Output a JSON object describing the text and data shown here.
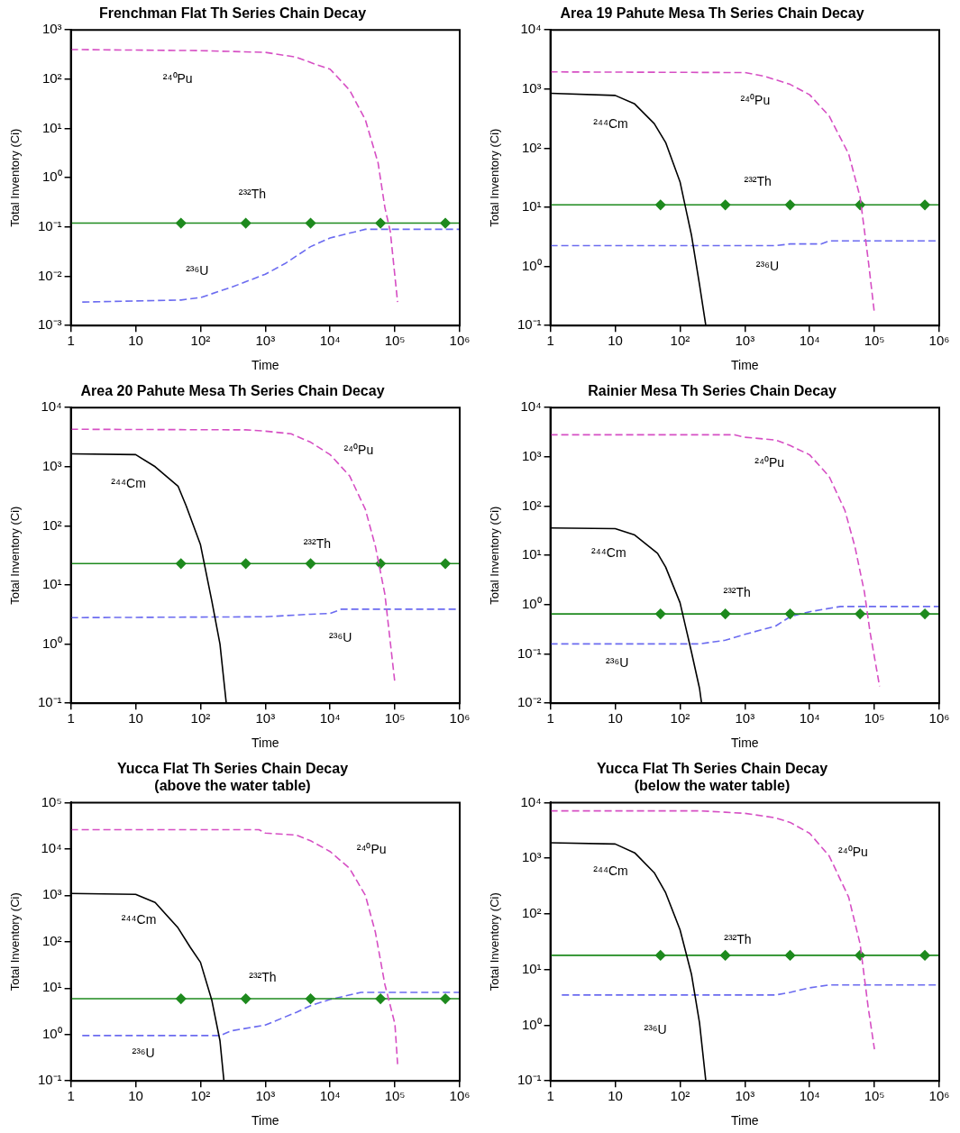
{
  "chart_data": [
    {
      "type": "line",
      "title": "Frenchman Flat Th Series Chain Decay",
      "xlabel": "Time",
      "ylabel": "Total Inventory (Ci)",
      "log": "xy",
      "grid": false,
      "legend": false,
      "xlim": [
        1,
        1000000
      ],
      "xticks": [
        {
          "value": 1,
          "label": "1"
        },
        {
          "value": 10,
          "label": "10"
        },
        {
          "value": 100,
          "label": "10²"
        },
        {
          "value": 1000,
          "label": "10³"
        },
        {
          "value": 10000,
          "label": "10⁴"
        },
        {
          "value": 100000,
          "label": "10⁵"
        },
        {
          "value": 1000000,
          "label": "10⁶"
        }
      ],
      "ylim": [
        0.001,
        1000
      ],
      "yticks": [
        {
          "value": 0.001,
          "label": "10⁻³"
        },
        {
          "value": 0.01,
          "label": "10⁻²"
        },
        {
          "value": 0.1,
          "label": "10⁻¹"
        },
        {
          "value": 1,
          "label": "10⁰"
        },
        {
          "value": 10,
          "label": "10¹"
        },
        {
          "value": 100,
          "label": "10²"
        },
        {
          "value": 1000,
          "label": "10³"
        }
      ],
      "series": [
        {
          "name": "²⁴⁰Pu",
          "color": "#d64fc4",
          "line_style": "dashed",
          "marker": "none",
          "x": [
            1,
            100,
            1000,
            3000,
            6000,
            10000,
            20000,
            35000,
            55000,
            70000,
            85000,
            110000
          ],
          "values": [
            400,
            380,
            350,
            280,
            200,
            160,
            60,
            15,
            2,
            0.25,
            0.08,
            0.003
          ]
        },
        {
          "name": "²³²Th",
          "color": "#1e8a1e",
          "line_style": "solid",
          "marker": "diamond",
          "x": [
            1,
            50,
            500,
            5000,
            60000,
            600000,
            1000000
          ],
          "values": [
            0.12,
            0.12,
            0.12,
            0.12,
            0.12,
            0.12,
            0.12
          ]
        },
        {
          "name": "²³⁶U",
          "color": "#6b6bf0",
          "line_style": "dashed",
          "marker": "none",
          "x": [
            1.5,
            50,
            100,
            300,
            1000,
            2000,
            5000,
            10000,
            35000,
            1000000
          ],
          "values": [
            0.003,
            0.0033,
            0.0037,
            0.006,
            0.011,
            0.018,
            0.04,
            0.06,
            0.09,
            0.09
          ]
        }
      ]
    },
    {
      "type": "line",
      "title": "Area 19 Pahute Mesa Th Series Chain Decay",
      "xlabel": "Time",
      "ylabel": "Total Inventory (Ci)",
      "log": "xy",
      "grid": false,
      "legend": false,
      "xlim": [
        1,
        1000000
      ],
      "xticks": [
        {
          "value": 1,
          "label": "1"
        },
        {
          "value": 10,
          "label": "10"
        },
        {
          "value": 100,
          "label": "10²"
        },
        {
          "value": 1000,
          "label": "10³"
        },
        {
          "value": 10000,
          "label": "10⁴"
        },
        {
          "value": 100000,
          "label": "10⁵"
        },
        {
          "value": 1000000,
          "label": "10⁶"
        }
      ],
      "ylim": [
        0.1,
        10000
      ],
      "yticks": [
        {
          "value": 0.1,
          "label": "10⁻¹"
        },
        {
          "value": 1,
          "label": "10⁰"
        },
        {
          "value": 10,
          "label": "10¹"
        },
        {
          "value": 100,
          "label": "10²"
        },
        {
          "value": 1000,
          "label": "10³"
        },
        {
          "value": 10000,
          "label": "10⁴"
        }
      ],
      "series": [
        {
          "name": "²⁴⁰Pu",
          "color": "#d64fc4",
          "line_style": "dashed",
          "marker": "none",
          "x": [
            1,
            1000,
            2000,
            5000,
            10000,
            20000,
            40000,
            60000,
            80000,
            100000
          ],
          "values": [
            1950,
            1900,
            1650,
            1200,
            800,
            350,
            80,
            15,
            1.3,
            0.16
          ]
        },
        {
          "name": "²⁴⁴Cm",
          "color": "#000000",
          "line_style": "solid",
          "marker": "none",
          "x": [
            1,
            10,
            20,
            40,
            60,
            100,
            150,
            200,
            250
          ],
          "values": [
            850,
            780,
            560,
            260,
            125,
            27,
            3.4,
            0.49,
            0.1
          ]
        },
        {
          "name": "²³²Th",
          "color": "#1e8a1e",
          "line_style": "solid",
          "marker": "diamond",
          "x": [
            1,
            50,
            500,
            5000,
            60000,
            600000,
            1000000
          ],
          "values": [
            11,
            11,
            11,
            11,
            11,
            11,
            11
          ]
        },
        {
          "name": "²³⁶U",
          "color": "#6b6bf0",
          "line_style": "dashed",
          "marker": "none",
          "x": [
            1,
            3000,
            5000,
            15000,
            20000,
            1000000
          ],
          "values": [
            2.25,
            2.25,
            2.4,
            2.4,
            2.7,
            2.7
          ]
        }
      ]
    },
    {
      "type": "line",
      "title": "Area 20 Pahute Mesa Th Series Chain Decay",
      "xlabel": "Time",
      "ylabel": "Total Inventory (Ci)",
      "log": "xy",
      "grid": false,
      "legend": false,
      "xlim": [
        1,
        1000000
      ],
      "xticks": [
        {
          "value": 1,
          "label": "1"
        },
        {
          "value": 10,
          "label": "10"
        },
        {
          "value": 100,
          "label": "10²"
        },
        {
          "value": 1000,
          "label": "10³"
        },
        {
          "value": 10000,
          "label": "10⁴"
        },
        {
          "value": 100000,
          "label": "10⁵"
        },
        {
          "value": 1000000,
          "label": "10⁶"
        }
      ],
      "ylim": [
        0.1,
        10000
      ],
      "yticks": [
        {
          "value": 0.1,
          "label": "10⁻¹"
        },
        {
          "value": 1,
          "label": "10⁰"
        },
        {
          "value": 10,
          "label": "10¹"
        },
        {
          "value": 100,
          "label": "10²"
        },
        {
          "value": 1000,
          "label": "10³"
        },
        {
          "value": 10000,
          "label": "10⁴"
        }
      ],
      "series": [
        {
          "name": "²⁴⁰Pu",
          "color": "#d64fc4",
          "line_style": "dashed",
          "marker": "none",
          "x": [
            1,
            500,
            1000,
            2500,
            5000,
            10000,
            20000,
            35000,
            50000,
            70000,
            100000
          ],
          "values": [
            4300,
            4200,
            4000,
            3600,
            2600,
            1600,
            700,
            190,
            45,
            7,
            0.22
          ]
        },
        {
          "name": "²⁴⁴Cm",
          "color": "#000000",
          "line_style": "solid",
          "marker": "none",
          "x": [
            1,
            10,
            20,
            45,
            60,
            100,
            150,
            200,
            250
          ],
          "values": [
            1650,
            1600,
            1000,
            470,
            220,
            48,
            5.3,
            1,
            0.1
          ]
        },
        {
          "name": "²³²Th",
          "color": "#1e8a1e",
          "line_style": "solid",
          "marker": "diamond",
          "x": [
            1,
            50,
            500,
            5000,
            60000,
            600000,
            1000000
          ],
          "values": [
            23,
            23,
            23,
            23,
            23,
            23,
            23
          ]
        },
        {
          "name": "²³⁶U",
          "color": "#6b6bf0",
          "line_style": "dashed",
          "marker": "none",
          "x": [
            1,
            1000,
            5000,
            10000,
            15000,
            1000000
          ],
          "values": [
            2.8,
            2.9,
            3.2,
            3.3,
            3.9,
            3.9
          ]
        }
      ]
    },
    {
      "type": "line",
      "title": "Rainier Mesa Th Series Chain Decay",
      "xlabel": "Time",
      "ylabel": "Total Inventory (Ci)",
      "log": "xy",
      "grid": false,
      "legend": false,
      "xlim": [
        1,
        1000000
      ],
      "xticks": [
        {
          "value": 1,
          "label": "1"
        },
        {
          "value": 10,
          "label": "10"
        },
        {
          "value": 100,
          "label": "10²"
        },
        {
          "value": 1000,
          "label": "10³"
        },
        {
          "value": 10000,
          "label": "10⁴"
        },
        {
          "value": 100000,
          "label": "10⁵"
        },
        {
          "value": 1000000,
          "label": "10⁶"
        }
      ],
      "ylim": [
        0.01,
        10000
      ],
      "yticks": [
        {
          "value": 0.01,
          "label": "10⁻²"
        },
        {
          "value": 0.1,
          "label": "10⁻¹"
        },
        {
          "value": 1,
          "label": "10⁰"
        },
        {
          "value": 10,
          "label": "10¹"
        },
        {
          "value": 100,
          "label": "10²"
        },
        {
          "value": 1000,
          "label": "10³"
        },
        {
          "value": 10000,
          "label": "10⁴"
        }
      ],
      "series": [
        {
          "name": "²⁴⁰Pu",
          "color": "#d64fc4",
          "line_style": "dashed",
          "marker": "none",
          "x": [
            1,
            700,
            1000,
            3000,
            5000,
            10000,
            20000,
            35000,
            50000,
            70000,
            85000,
            120000
          ],
          "values": [
            2800,
            2800,
            2500,
            2200,
            1700,
            1100,
            400,
            82,
            15,
            1.8,
            0.29,
            0.022
          ]
        },
        {
          "name": "²⁴⁴Cm",
          "color": "#000000",
          "line_style": "solid",
          "marker": "none",
          "x": [
            1,
            10,
            20,
            45,
            60,
            100,
            150,
            200,
            215
          ],
          "values": [
            36,
            35,
            26,
            11,
            5.8,
            1.1,
            0.11,
            0.02,
            0.01
          ]
        },
        {
          "name": "²³²Th",
          "color": "#1e8a1e",
          "line_style": "solid",
          "marker": "diamond",
          "x": [
            1,
            50,
            500,
            5000,
            60000,
            600000,
            1000000
          ],
          "values": [
            0.65,
            0.65,
            0.65,
            0.65,
            0.65,
            0.65,
            0.65
          ]
        },
        {
          "name": "²³⁶U",
          "color": "#6b6bf0",
          "line_style": "dashed",
          "marker": "none",
          "x": [
            1,
            200,
            500,
            1000,
            3000,
            5000,
            10000,
            30000,
            1000000
          ],
          "values": [
            0.16,
            0.16,
            0.19,
            0.25,
            0.37,
            0.57,
            0.72,
            0.92,
            0.92
          ]
        }
      ]
    },
    {
      "type": "line",
      "title": "Yucca Flat Th Series Chain Decay",
      "subtitle": "(above the water table)",
      "xlabel": "Time",
      "ylabel": "Total Inventory (Ci)",
      "log": "xy",
      "grid": false,
      "legend": false,
      "xlim": [
        1,
        1000000
      ],
      "xticks": [
        {
          "value": 1,
          "label": "1"
        },
        {
          "value": 10,
          "label": "10"
        },
        {
          "value": 100,
          "label": "10²"
        },
        {
          "value": 1000,
          "label": "10³"
        },
        {
          "value": 10000,
          "label": "10⁴"
        },
        {
          "value": 100000,
          "label": "10⁵"
        },
        {
          "value": 1000000,
          "label": "10⁶"
        }
      ],
      "ylim": [
        0.1,
        100000
      ],
      "yticks": [
        {
          "value": 0.1,
          "label": "10⁻¹"
        },
        {
          "value": 1,
          "label": "10⁰"
        },
        {
          "value": 10,
          "label": "10¹"
        },
        {
          "value": 100,
          "label": "10²"
        },
        {
          "value": 1000,
          "label": "10³"
        },
        {
          "value": 10000,
          "label": "10⁴"
        },
        {
          "value": 100000,
          "label": "10⁵"
        }
      ],
      "series": [
        {
          "name": "²⁴⁰Pu",
          "color": "#d64fc4",
          "line_style": "dashed",
          "marker": "none",
          "x": [
            1,
            800,
            1000,
            3000,
            5000,
            10000,
            20000,
            35000,
            50000,
            70000,
            100000,
            110000
          ],
          "values": [
            26000,
            26000,
            22000,
            20000,
            15000,
            8800,
            3800,
            1000,
            160,
            12,
            1.7,
            0.23
          ]
        },
        {
          "name": "²⁴⁴Cm",
          "color": "#000000",
          "line_style": "solid",
          "marker": "none",
          "x": [
            1,
            10,
            20,
            45,
            70,
            100,
            150,
            200,
            230
          ],
          "values": [
            1100,
            1050,
            700,
            200,
            75,
            36,
            5.4,
            0.73,
            0.1
          ]
        },
        {
          "name": "²³²Th",
          "color": "#1e8a1e",
          "line_style": "solid",
          "marker": "diamond",
          "x": [
            1,
            50,
            500,
            5000,
            60000,
            600000,
            1000000
          ],
          "values": [
            5.9,
            5.9,
            5.9,
            5.9,
            5.9,
            5.9,
            5.9
          ]
        },
        {
          "name": "²³⁶U",
          "color": "#6b6bf0",
          "line_style": "dashed",
          "marker": "none",
          "x": [
            1.5,
            200,
            300,
            1000,
            3000,
            5000,
            10000,
            30000,
            1000000
          ],
          "values": [
            0.95,
            0.95,
            1.2,
            1.6,
            3,
            4.2,
            5.7,
            8.1,
            8.1
          ]
        }
      ]
    },
    {
      "type": "line",
      "title": "Yucca Flat Th Series Chain Decay",
      "subtitle": "(below the water table)",
      "xlabel": "Time",
      "ylabel": "Total Inventory (Ci)",
      "log": "xy",
      "grid": false,
      "legend": false,
      "xlim": [
        1,
        1000000
      ],
      "xticks": [
        {
          "value": 1,
          "label": "1"
        },
        {
          "value": 10,
          "label": "10"
        },
        {
          "value": 100,
          "label": "10²"
        },
        {
          "value": 1000,
          "label": "10³"
        },
        {
          "value": 10000,
          "label": "10⁴"
        },
        {
          "value": 100000,
          "label": "10⁵"
        },
        {
          "value": 1000000,
          "label": "10⁶"
        }
      ],
      "ylim": [
        0.1,
        10000
      ],
      "yticks": [
        {
          "value": 0.1,
          "label": "10⁻¹"
        },
        {
          "value": 1,
          "label": "10⁰"
        },
        {
          "value": 10,
          "label": "10¹"
        },
        {
          "value": 100,
          "label": "10²"
        },
        {
          "value": 1000,
          "label": "10³"
        },
        {
          "value": 10000,
          "label": "10⁴"
        }
      ],
      "series": [
        {
          "name": "²⁴⁰Pu",
          "color": "#d64fc4",
          "line_style": "dashed",
          "marker": "none",
          "x": [
            1,
            200,
            500,
            1000,
            3000,
            5000,
            10000,
            20000,
            40000,
            60000,
            80000,
            100000
          ],
          "values": [
            7100,
            7100,
            6700,
            6400,
            5300,
            4400,
            2800,
            1100,
            200,
            29,
            2.1,
            0.37
          ]
        },
        {
          "name": "²⁴⁴Cm",
          "color": "#000000",
          "line_style": "solid",
          "marker": "none",
          "x": [
            1,
            10,
            20,
            40,
            60,
            100,
            150,
            200,
            250
          ],
          "values": [
            1900,
            1800,
            1250,
            550,
            240,
            52,
            8.3,
            1.1,
            0.1
          ]
        },
        {
          "name": "²³²Th",
          "color": "#1e8a1e",
          "line_style": "solid",
          "marker": "diamond",
          "x": [
            1,
            50,
            500,
            5000,
            60000,
            600000,
            1000000
          ],
          "values": [
            18,
            18,
            18,
            18,
            18,
            18,
            18
          ]
        },
        {
          "name": "²³⁶U",
          "color": "#6b6bf0",
          "line_style": "dashed",
          "marker": "none",
          "x": [
            1.5,
            3000,
            5000,
            10000,
            20000,
            1000000
          ],
          "values": [
            3.5,
            3.5,
            3.9,
            4.7,
            5.3,
            5.3
          ]
        }
      ]
    }
  ]
}
